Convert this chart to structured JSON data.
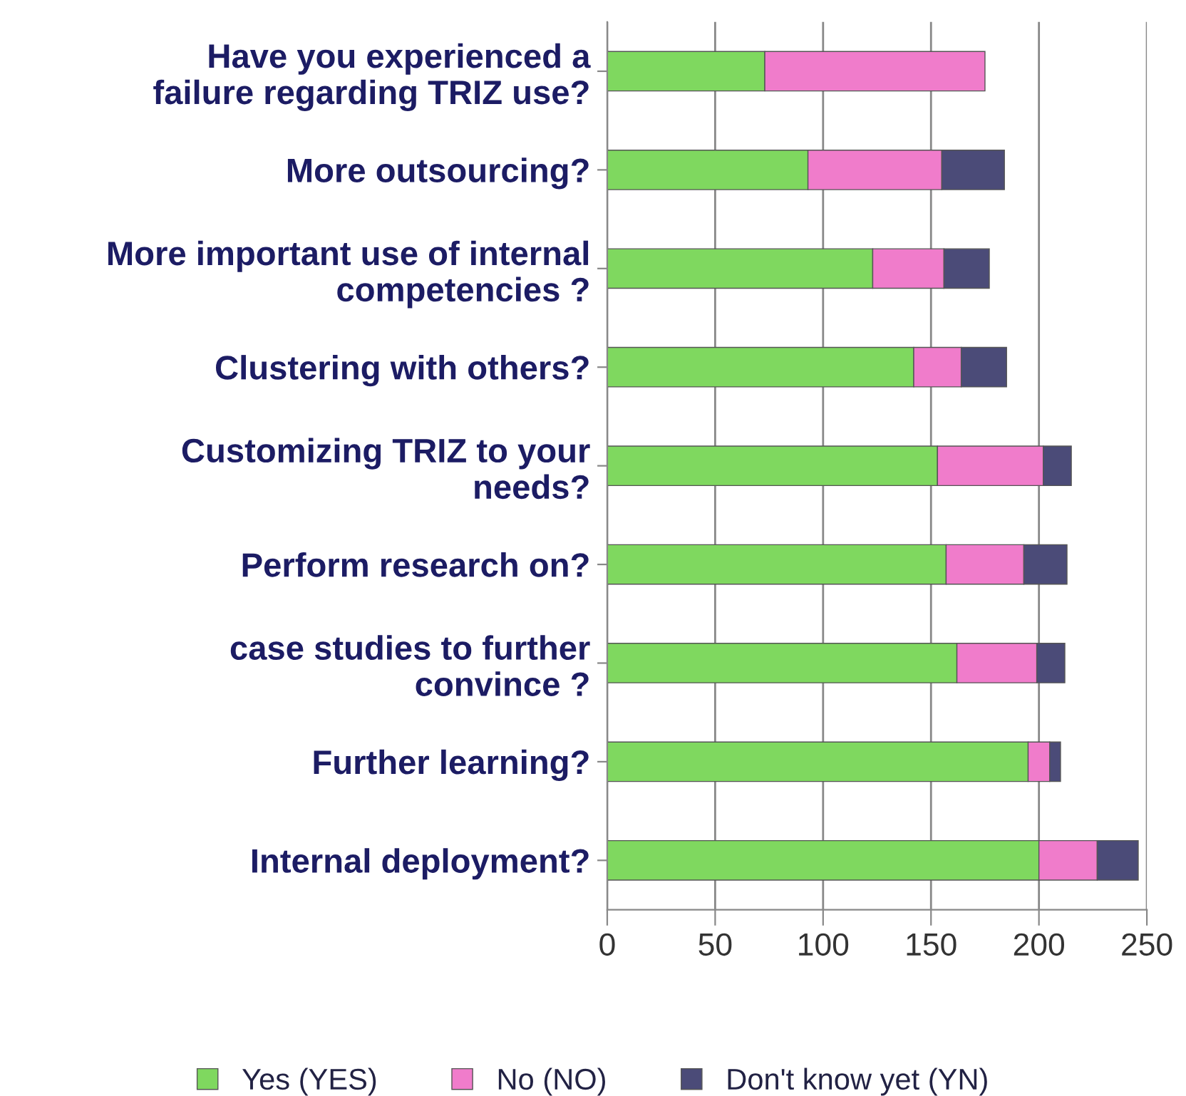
{
  "chart_data": {
    "type": "bar",
    "orientation": "horizontal",
    "stacked": true,
    "categories": [
      "Have you experienced a\nfailure regarding TRIZ use?",
      "More outsourcing?",
      "More important use of internal\ncompetencies ?",
      "Clustering with others?",
      "Customizing TRIZ to your\nneeds?",
      "Perform research on?",
      "case studies to further\nconvince ?",
      "Further learning?",
      "Internal deployment?"
    ],
    "series": [
      {
        "name": "Yes (YES)",
        "color": "#7fd85f",
        "values": [
          73,
          93,
          123,
          142,
          153,
          157,
          162,
          195,
          200
        ]
      },
      {
        "name": "No (NO)",
        "color": "#f07ccb",
        "values": [
          102,
          62,
          33,
          22,
          49,
          36,
          37,
          10,
          27
        ]
      },
      {
        "name": "Don't know yet (YN)",
        "color": "#4b4b78",
        "values": [
          null,
          29,
          21,
          21,
          13,
          20,
          13,
          5,
          19
        ]
      }
    ],
    "xlim": [
      0,
      250
    ],
    "xticks": [
      0,
      50,
      100,
      150,
      200,
      250
    ],
    "grid": "x",
    "legend": "bottom"
  }
}
